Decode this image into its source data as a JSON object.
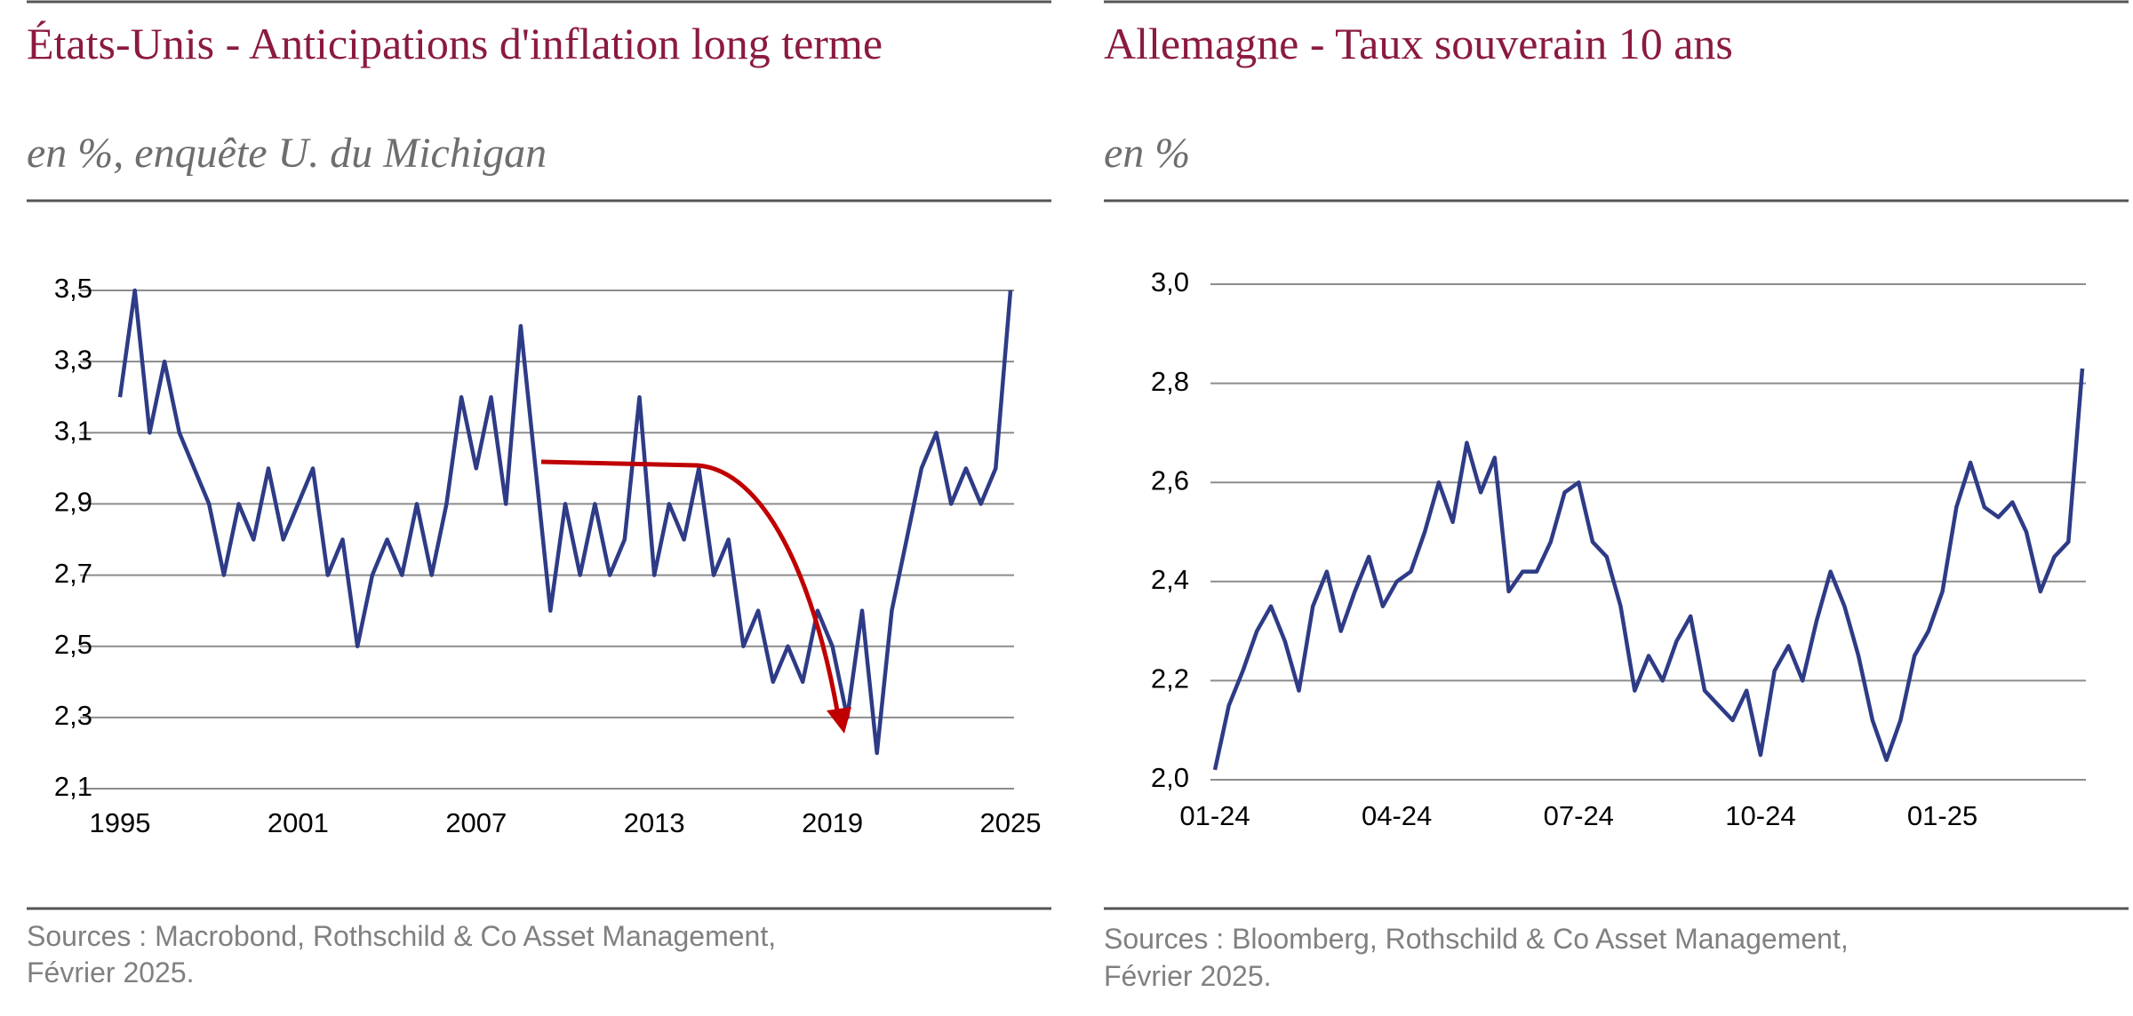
{
  "chart_data": [
    {
      "type": "line",
      "title": "États-Unis - Anticipations d'inflation long terme",
      "subtitle": "en %, enquête U. du Michigan",
      "source": [
        "Sources : Macrobond, Rothschild & Co Asset Management,",
        " Février 2025."
      ],
      "color": "#2e3b86",
      "grid": true,
      "x": [
        1995,
        1995.5,
        1996,
        1996.5,
        1997,
        1997.5,
        1998,
        1998.5,
        1999,
        1999.5,
        2000,
        2000.5,
        2001,
        2001.5,
        2002,
        2002.5,
        2003,
        2003.5,
        2004,
        2004.5,
        2005,
        2005.5,
        2006,
        2006.5,
        2007,
        2007.5,
        2008,
        2008.5,
        2009,
        2009.5,
        2010,
        2010.5,
        2011,
        2011.5,
        2012,
        2012.5,
        2013,
        2013.5,
        2014,
        2014.5,
        2015,
        2015.5,
        2016,
        2016.5,
        2017,
        2017.5,
        2018,
        2018.5,
        2019,
        2019.5,
        2020,
        2020.5,
        2021,
        2021.5,
        2022,
        2022.5,
        2023,
        2023.5,
        2024,
        2024.5,
        2025
      ],
      "values": [
        3.2,
        3.5,
        3.1,
        3.3,
        3.1,
        3.0,
        2.9,
        2.7,
        2.9,
        2.8,
        3.0,
        2.8,
        2.9,
        3.0,
        2.7,
        2.8,
        2.5,
        2.7,
        2.8,
        2.7,
        2.9,
        2.7,
        2.9,
        3.2,
        3.0,
        3.2,
        2.9,
        3.4,
        3.0,
        2.6,
        2.9,
        2.7,
        2.9,
        2.7,
        2.8,
        3.2,
        2.7,
        2.9,
        2.8,
        3.0,
        2.7,
        2.8,
        2.5,
        2.6,
        2.4,
        2.5,
        2.4,
        2.6,
        2.5,
        2.3,
        2.6,
        2.2,
        2.6,
        2.8,
        3.0,
        3.1,
        2.9,
        3.0,
        2.9,
        3.0,
        3.5
      ],
      "xlim": [
        1995,
        2025
      ],
      "xticks": [
        1995,
        2001,
        2007,
        2013,
        2019,
        2025
      ],
      "ylim": [
        2.1,
        3.5
      ],
      "yticks": [
        {
          "value": 2.1,
          "label": "2,1"
        },
        {
          "value": 2.3,
          "label": "2,3"
        },
        {
          "value": 2.5,
          "label": "2,5"
        },
        {
          "value": 2.7,
          "label": "2,7"
        },
        {
          "value": 2.9,
          "label": "2,9"
        },
        {
          "value": 3.1,
          "label": "3,1"
        },
        {
          "value": 3.3,
          "label": "3,3"
        },
        {
          "value": 3.5,
          "label": "3,5"
        }
      ]
    },
    {
      "type": "line",
      "title": "Allemagne - Taux souverain 10 ans",
      "subtitle": "en %",
      "source": [
        "Sources : Bloomberg, Rothschild & Co Asset Management,",
        "Février 2025."
      ],
      "color": "#2e3b86",
      "grid": true,
      "categories": [
        "01-24",
        null,
        null,
        null,
        null,
        null,
        null,
        null,
        null,
        null,
        null,
        null,
        null,
        "04-24",
        null,
        null,
        null,
        null,
        null,
        null,
        null,
        null,
        null,
        null,
        null,
        null,
        "07-24",
        null,
        null,
        null,
        null,
        null,
        null,
        null,
        null,
        null,
        null,
        null,
        null,
        "10-24",
        null,
        null,
        null,
        null,
        null,
        null,
        null,
        null,
        null,
        null,
        null,
        null,
        "01-25",
        null,
        null,
        null,
        null,
        null,
        null,
        null,
        null,
        null,
        null
      ],
      "values": [
        2.02,
        2.15,
        2.22,
        2.3,
        2.35,
        2.28,
        2.18,
        2.35,
        2.42,
        2.3,
        2.38,
        2.45,
        2.35,
        2.4,
        2.42,
        2.5,
        2.6,
        2.52,
        2.68,
        2.58,
        2.65,
        2.38,
        2.42,
        2.42,
        2.48,
        2.58,
        2.6,
        2.48,
        2.45,
        2.35,
        2.18,
        2.25,
        2.2,
        2.28,
        2.33,
        2.18,
        2.15,
        2.12,
        2.18,
        2.05,
        2.22,
        2.27,
        2.2,
        2.32,
        2.42,
        2.35,
        2.25,
        2.12,
        2.04,
        2.12,
        2.25,
        2.3,
        2.38,
        2.55,
        2.64,
        2.55,
        2.53,
        2.56,
        2.5,
        2.38,
        2.45,
        2.48,
        2.83
      ],
      "ylim": [
        2.0,
        3.0
      ],
      "yticks": [
        {
          "value": 2.0,
          "label": "2,0"
        },
        {
          "value": 2.2,
          "label": "2,2"
        },
        {
          "value": 2.4,
          "label": "2,4"
        },
        {
          "value": 2.6,
          "label": "2,6"
        },
        {
          "value": 2.8,
          "label": "2,8"
        },
        {
          "value": 3.0,
          "label": "3,0"
        }
      ]
    }
  ]
}
